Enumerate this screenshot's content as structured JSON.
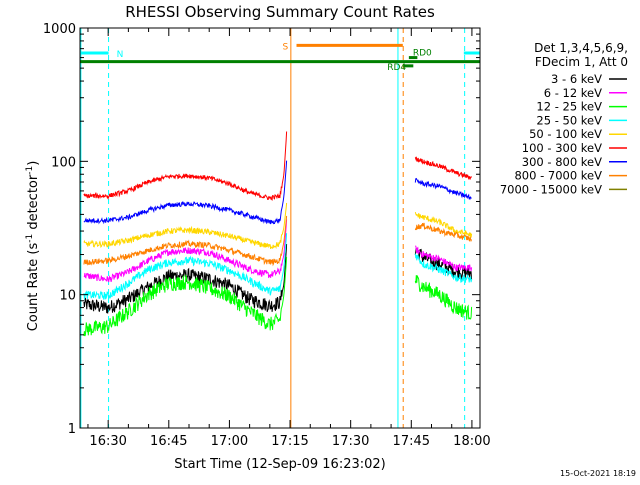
{
  "chart_data": {
    "type": "line",
    "title": "RHESSI Observing Summary Count Rates",
    "xlabel": "Start Time (12-Sep-09 16:23:02)",
    "ylabel_main": "Count Rate (s",
    "ylabel_sup1": "-1",
    "ylabel_mid": " detector",
    "ylabel_sup2": "-1",
    "ylabel_end": ")",
    "yscale": "log",
    "ylim": [
      1,
      1000
    ],
    "xlim_minutes": [
      983.03,
      1082.0
    ],
    "x_ticks": [
      {
        "label": "16:30",
        "minutes": 990
      },
      {
        "label": "16:45",
        "minutes": 1005
      },
      {
        "label": "17:00",
        "minutes": 1020
      },
      {
        "label": "17:15",
        "minutes": 1035
      },
      {
        "label": "17:30",
        "minutes": 1050
      },
      {
        "label": "17:45",
        "minutes": 1065
      },
      {
        "label": "18:00",
        "minutes": 1080
      }
    ],
    "y_ticks": [
      {
        "label": "1",
        "value": 1
      },
      {
        "label": "10",
        "value": 10
      },
      {
        "label": "100",
        "value": 100
      },
      {
        "label": "1000",
        "value": 1000
      }
    ],
    "legend_header": [
      "Det 1,3,4,5,6,9,",
      "FDecim 1, Att 0"
    ],
    "legend_placement": "right",
    "series": [
      {
        "name": "3 - 6 keV",
        "color": "#000000",
        "key": [
          [
            984,
            8.5
          ],
          [
            990,
            8.0
          ],
          [
            995,
            9.3
          ],
          [
            1000,
            11.5
          ],
          [
            1005,
            13.8
          ],
          [
            1010,
            14.0
          ],
          [
            1015,
            13.2
          ],
          [
            1020,
            11.7
          ],
          [
            1025,
            9.3
          ],
          [
            1030,
            8.3
          ],
          [
            1032.5,
            8.8
          ],
          [
            1033.5,
            12
          ],
          [
            1034.2,
            25
          ]
        ],
        "key2": [
          [
            1066,
            22
          ],
          [
            1068,
            19
          ],
          [
            1072,
            17
          ],
          [
            1076,
            15
          ],
          [
            1080,
            14.5
          ]
        ],
        "noise": 0.12
      },
      {
        "name": "6 - 12 keV",
        "color": "#ff00ff",
        "key": [
          [
            984,
            14
          ],
          [
            990,
            13
          ],
          [
            995,
            14.8
          ],
          [
            1000,
            18
          ],
          [
            1005,
            21
          ],
          [
            1010,
            21.5
          ],
          [
            1015,
            20.8
          ],
          [
            1020,
            18
          ],
          [
            1025,
            15.5
          ],
          [
            1030,
            14
          ],
          [
            1032.5,
            15
          ],
          [
            1033.5,
            20
          ],
          [
            1034.2,
            38
          ]
        ],
        "key2": [
          [
            1066,
            22
          ],
          [
            1068,
            20
          ],
          [
            1072,
            18.5
          ],
          [
            1076,
            16
          ],
          [
            1080,
            16
          ]
        ],
        "noise": 0.06
      },
      {
        "name": "12 - 25 keV",
        "color": "#00ff00",
        "key": [
          [
            984,
            5.5
          ],
          [
            990,
            5.8
          ],
          [
            995,
            7.5
          ],
          [
            1000,
            10.2
          ],
          [
            1005,
            12.2
          ],
          [
            1010,
            12.5
          ],
          [
            1015,
            11.2
          ],
          [
            1020,
            9.8
          ],
          [
            1025,
            7.5
          ],
          [
            1030,
            6.0
          ],
          [
            1032.5,
            6.5
          ],
          [
            1033.5,
            10
          ],
          [
            1034.2,
            20
          ]
        ],
        "key2": [
          [
            1066,
            13
          ],
          [
            1068,
            11.5
          ],
          [
            1072,
            10
          ],
          [
            1076,
            8
          ],
          [
            1080,
            7.2
          ]
        ],
        "noise": 0.13
      },
      {
        "name": "25 - 50 keV",
        "color": "#00ffff",
        "key": [
          [
            984,
            10
          ],
          [
            990,
            9.8
          ],
          [
            995,
            12.2
          ],
          [
            1000,
            15.5
          ],
          [
            1005,
            17.5
          ],
          [
            1010,
            18
          ],
          [
            1015,
            17.2
          ],
          [
            1020,
            15.2
          ],
          [
            1025,
            12.8
          ],
          [
            1030,
            10.6
          ],
          [
            1032.5,
            11
          ],
          [
            1033.5,
            16
          ],
          [
            1034.2,
            30
          ]
        ],
        "key2": [
          [
            1066,
            20
          ],
          [
            1068,
            17
          ],
          [
            1072,
            15.5
          ],
          [
            1076,
            13.5
          ],
          [
            1080,
            13
          ]
        ],
        "noise": 0.07
      },
      {
        "name": "50 - 100 keV",
        "color": "#ffd700",
        "key": [
          [
            984,
            24
          ],
          [
            990,
            24
          ],
          [
            995,
            25.5
          ],
          [
            1000,
            28
          ],
          [
            1005,
            30
          ],
          [
            1010,
            30.5
          ],
          [
            1015,
            29.5
          ],
          [
            1020,
            27.5
          ],
          [
            1025,
            25
          ],
          [
            1030,
            23
          ],
          [
            1032.5,
            24
          ],
          [
            1033.5,
            32
          ],
          [
            1034.2,
            50
          ]
        ],
        "key2": [
          [
            1066,
            40
          ],
          [
            1068,
            38
          ],
          [
            1072,
            35
          ],
          [
            1076,
            30
          ],
          [
            1080,
            28
          ]
        ],
        "noise": 0.05
      },
      {
        "name": "100 - 300 keV",
        "color": "#ff0000",
        "key": [
          [
            984,
            55
          ],
          [
            990,
            55
          ],
          [
            995,
            60
          ],
          [
            1000,
            70
          ],
          [
            1005,
            77
          ],
          [
            1010,
            78
          ],
          [
            1015,
            75
          ],
          [
            1020,
            68
          ],
          [
            1025,
            58
          ],
          [
            1030,
            53
          ],
          [
            1032.5,
            55
          ],
          [
            1033.5,
            80
          ],
          [
            1034.2,
            175
          ]
        ],
        "key2": [
          [
            1066,
            105
          ],
          [
            1068,
            100
          ],
          [
            1072,
            92
          ],
          [
            1076,
            82
          ],
          [
            1080,
            75
          ]
        ],
        "noise": 0.04
      },
      {
        "name": "300 - 800 keV",
        "color": "#0000ff",
        "key": [
          [
            984,
            36
          ],
          [
            990,
            36
          ],
          [
            995,
            38
          ],
          [
            1000,
            43
          ],
          [
            1005,
            47
          ],
          [
            1010,
            48
          ],
          [
            1015,
            46.5
          ],
          [
            1020,
            43
          ],
          [
            1025,
            39
          ],
          [
            1030,
            35
          ],
          [
            1032.5,
            36
          ],
          [
            1033.5,
            55
          ],
          [
            1034.2,
            105
          ]
        ],
        "key2": [
          [
            1066,
            72
          ],
          [
            1068,
            68
          ],
          [
            1072,
            65
          ],
          [
            1076,
            58
          ],
          [
            1080,
            53
          ]
        ],
        "noise": 0.04
      },
      {
        "name": "800 - 7000 keV",
        "color": "#ff8000",
        "key": [
          [
            984,
            17.5
          ],
          [
            990,
            18
          ],
          [
            995,
            19.5
          ],
          [
            1000,
            21.5
          ],
          [
            1005,
            23.5
          ],
          [
            1010,
            24
          ],
          [
            1015,
            23.5
          ],
          [
            1020,
            21.5
          ],
          [
            1025,
            19.5
          ],
          [
            1030,
            17.5
          ],
          [
            1032.5,
            18
          ],
          [
            1033.5,
            25
          ],
          [
            1034.2,
            40
          ]
        ],
        "key2": [
          [
            1066,
            32
          ],
          [
            1068,
            33
          ],
          [
            1072,
            30
          ],
          [
            1076,
            28
          ],
          [
            1080,
            26
          ]
        ],
        "noise": 0.05
      },
      {
        "name": "7000 - 15000 keV",
        "color": "#808000",
        "key": [],
        "key2": [],
        "noise": 0
      }
    ],
    "attenuator_segments": [
      {
        "label": "N",
        "x0_minutes": 983.03,
        "x1_minutes": 990.1,
        "value": 650,
        "color": "#00ffff"
      },
      {
        "label": "",
        "x0_minutes": 1078.0,
        "x1_minutes": 1082.0,
        "value": 650,
        "color": "#00ffff"
      },
      {
        "label": "S",
        "x0_minutes": 1036.6,
        "x1_minutes": 1062.9,
        "value": 740,
        "color": "#ff8000"
      },
      {
        "label": "",
        "x0_minutes": 983.03,
        "x1_minutes": 1082.0,
        "value": 560,
        "color": "#008000"
      },
      {
        "label": "RD4",
        "x0_minutes": 1063.0,
        "x1_minutes": 1065.5,
        "value": 520,
        "color": "#008000"
      },
      {
        "label": "RD0",
        "x0_minutes": 1064.4,
        "x1_minutes": 1066.5,
        "value": 600,
        "color": "#008000"
      }
    ],
    "vertical_lines": [
      {
        "minutes": 983.25,
        "color": "#00ffff",
        "dashed": false
      },
      {
        "minutes": 990.1,
        "color": "#00ffff",
        "dashed": true
      },
      {
        "minutes": 1035.2,
        "color": "#ff8000",
        "dashed": false
      },
      {
        "minutes": 1061.7,
        "color": "#00ffff",
        "dashed": false
      },
      {
        "minutes": 1063.0,
        "color": "#ff8000",
        "dashed": true
      },
      {
        "minutes": 1078.2,
        "color": "#00ffff",
        "dashed": true
      }
    ],
    "footer_date": "15-Oct-2021 18:19"
  }
}
